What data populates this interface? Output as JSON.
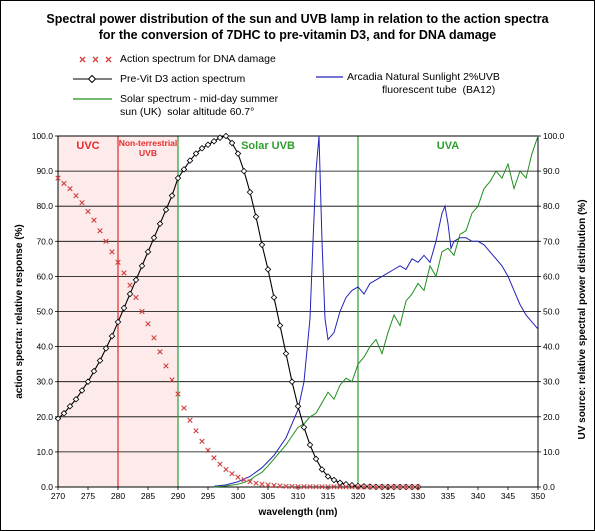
{
  "title_line1": "Spectral power distribution of the sun and UVB lamp in relation to the action spectra",
  "title_line2": "for the conversion of 7DHC to pre-vitamin D3, and for DNA damage",
  "legend": {
    "dna": "Action spectrum for DNA damage",
    "previt": "Pre-Vit D3 action spectrum",
    "solar_line1": "Solar spectrum - mid-day summer",
    "solar_line2": "sun (UK)  solar altitude 60.7°",
    "lamp_line1": "Arcadia Natural Sunlight 2%UVB",
    "lamp_line2": "fluorescent tube  (BA12)"
  },
  "chart_data": {
    "type": "line",
    "xlabel": "wavelength (nm)",
    "ylabel_left": "action spectra: relative response (%)",
    "ylabel_right": "UV source: relative spectral power distribution (%)",
    "xlim": [
      270,
      350
    ],
    "ylim": [
      0,
      100
    ],
    "x_ticks": [
      "270",
      "275",
      "280",
      "285",
      "290",
      "295",
      "300",
      "305",
      "310",
      "315",
      "320",
      "325",
      "330",
      "335",
      "340",
      "345",
      "350"
    ],
    "y_ticks": [
      "0.0",
      "10.0",
      "20.0",
      "30.0",
      "40.0",
      "50.0",
      "60.0",
      "70.0",
      "80.0",
      "90.0",
      "100.0"
    ],
    "grid": "horizontal",
    "regions": [
      {
        "label": "UVC",
        "from": 270,
        "to": 280,
        "color": "#e52b2b",
        "shaded": true
      },
      {
        "label": "Non-terrestrial UVB",
        "label_line1": "Non-terrestrial",
        "label_line2": "UVB",
        "from": 280,
        "to": 290,
        "color": "#e52b2b",
        "shaded": true
      },
      {
        "label": "Solar UVB",
        "from": 290,
        "to": 320,
        "color": "#2e9e2e",
        "shaded": false
      },
      {
        "label": "UVA",
        "from": 320,
        "to": 350,
        "color": "#2e9e2e",
        "shaded": false
      }
    ],
    "boundaries": [
      {
        "x": 280,
        "color": "#e52b2b"
      },
      {
        "x": 290,
        "color": "#2e9e2e"
      },
      {
        "x": 320,
        "color": "#2e9e2e"
      }
    ],
    "series": [
      {
        "name": "Action spectrum for DNA damage",
        "color": "#d04040",
        "marker": "x",
        "x": [
          270,
          271,
          272,
          273,
          274,
          275,
          276,
          277,
          278,
          279,
          280,
          281,
          282,
          283,
          284,
          285,
          286,
          287,
          288,
          289,
          290,
          291,
          292,
          293,
          294,
          295,
          296,
          297,
          298,
          299,
          300,
          301,
          302,
          303,
          304,
          305,
          306,
          307,
          308,
          309,
          310,
          311,
          312,
          313,
          314,
          315,
          316,
          317,
          318,
          319,
          320,
          321,
          322,
          323,
          324,
          325,
          326,
          327,
          328,
          329,
          330
        ],
        "y": [
          88,
          86.5,
          85,
          83,
          81,
          78.5,
          76,
          73,
          70,
          67,
          64,
          61,
          57.5,
          54,
          50,
          46.5,
          42.5,
          38.5,
          34.5,
          30.5,
          26.5,
          22.5,
          19,
          16,
          13,
          10.5,
          8.3,
          6.5,
          5,
          3.8,
          2.8,
          2.1,
          1.5,
          1.1,
          0.8,
          0.6,
          0.45,
          0.3,
          0.2,
          0.15,
          0.1,
          0.1,
          0.08,
          0.06,
          0.05,
          0.05,
          0.04,
          0.03,
          0.03,
          0.02,
          0.02,
          0.02,
          0.01,
          0.01,
          0.01,
          0.01,
          0.01,
          0.01,
          0.01,
          0.01,
          0.01
        ]
      },
      {
        "name": "Pre-Vit D3 action spectrum",
        "color": "#000000",
        "marker": "diamond",
        "x": [
          270,
          271,
          272,
          273,
          274,
          275,
          276,
          277,
          278,
          279,
          280,
          281,
          282,
          283,
          284,
          285,
          286,
          287,
          288,
          289,
          290,
          291,
          292,
          293,
          294,
          295,
          296,
          297,
          298,
          299,
          300,
          301,
          302,
          303,
          304,
          305,
          306,
          307,
          308,
          309,
          310,
          311,
          312,
          313,
          314,
          315,
          316,
          317,
          318,
          319,
          320,
          321,
          322,
          323,
          324,
          325,
          326,
          327,
          328,
          329,
          330
        ],
        "y": [
          19.5,
          21,
          23,
          25,
          27.5,
          30,
          33,
          36,
          39.5,
          43,
          47,
          51,
          55,
          59,
          63,
          67,
          71,
          75,
          79,
          83,
          88,
          90.5,
          93,
          95,
          96.5,
          97.5,
          98.5,
          99.5,
          100,
          98,
          95,
          90,
          84,
          77,
          69,
          62,
          54,
          46,
          38,
          30,
          23,
          17,
          12,
          8,
          5,
          3,
          2,
          1.2,
          0.8,
          0.5,
          0.3,
          0.2,
          0.1,
          0.05,
          0.02,
          0,
          0,
          0,
          0,
          0,
          0
        ]
      },
      {
        "name": "Solar spectrum - mid-day summer sun (UK)  solar altitude 60.7°",
        "color": "#1f8f1f",
        "marker": "none",
        "x": [
          296,
          298,
          300,
          301,
          302,
          303,
          304,
          305,
          306,
          307,
          308,
          309,
          310,
          311,
          312,
          313,
          314,
          315,
          316,
          317,
          318,
          319,
          320,
          321,
          322,
          323,
          324,
          325,
          326,
          327,
          328,
          329,
          330,
          331,
          332,
          333,
          334,
          335,
          336,
          337,
          338,
          339,
          340,
          341,
          342,
          343,
          344,
          345,
          346,
          347,
          348,
          349,
          350
        ],
        "y": [
          0,
          0.3,
          0.8,
          1.3,
          2,
          3.2,
          4.2,
          6,
          8,
          10,
          12,
          14.5,
          17,
          18,
          20,
          21,
          24,
          27,
          25,
          29,
          31,
          30,
          35,
          37,
          40,
          42,
          38,
          44,
          49,
          46,
          53,
          55,
          58,
          56,
          63,
          60,
          67,
          68,
          66,
          72,
          73,
          78,
          80,
          85,
          87,
          90,
          88,
          92,
          85,
          90,
          88,
          95,
          100
        ]
      },
      {
        "name": "Arcadia Natural Sunlight 2%UVB fluorescent tube  (BA12)",
        "color": "#2222bb",
        "marker": "none",
        "x": [
          296,
          298,
          300,
          302,
          304,
          306,
          308,
          310,
          311,
          312,
          312.5,
          313,
          313.5,
          314,
          314.5,
          315,
          316,
          317,
          318,
          319,
          320,
          321,
          322,
          323,
          324,
          325,
          326,
          327,
          328,
          329,
          330,
          331,
          332,
          333,
          334,
          334.5,
          335,
          335.5,
          336,
          337,
          338,
          339,
          340,
          341,
          342,
          343,
          344,
          345,
          346,
          347,
          348,
          349,
          350
        ],
        "y": [
          0.2,
          0.6,
          1.5,
          3,
          5.5,
          9,
          14,
          22,
          30,
          48,
          70,
          90,
          100,
          70,
          48,
          42,
          44,
          50,
          54,
          56,
          57,
          55,
          58,
          59,
          60,
          61,
          62,
          63,
          62,
          65,
          64,
          66,
          64,
          70,
          78,
          80,
          75,
          68,
          70,
          71,
          71,
          70,
          70,
          69,
          67,
          65,
          63,
          60,
          56,
          52,
          49,
          47,
          45
        ]
      }
    ]
  }
}
